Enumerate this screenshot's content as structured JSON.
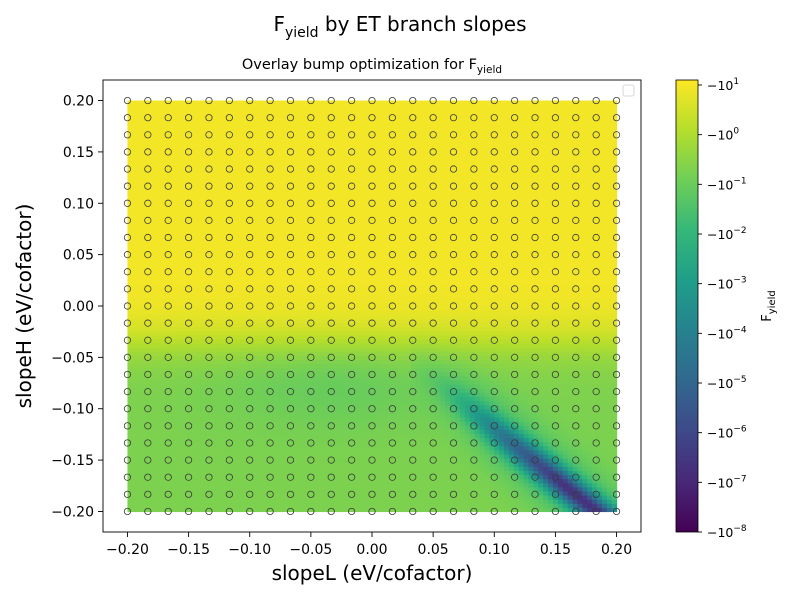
{
  "chart_data": {
    "type": "heatmap",
    "suptitle": {
      "base": "F",
      "sub": "yield",
      "rest": " by ET branch slopes"
    },
    "title": {
      "base": "Overlay bump optimization for F",
      "sub": "yield"
    },
    "xlabel": "slopeL (eV/cofactor)",
    "ylabel": "slopeH (eV/cofactor)",
    "xlim": [
      -0.22,
      0.22
    ],
    "ylim": [
      -0.22,
      0.22
    ],
    "data_range": {
      "x": [
        -0.2,
        0.2
      ],
      "y": [
        -0.2,
        0.2
      ]
    },
    "xticks": [
      "−0.20",
      "−0.15",
      "−0.10",
      "−0.05",
      "0.00",
      "0.05",
      "0.10",
      "0.15",
      "0.20"
    ],
    "yticks": [
      "−0.20",
      "−0.15",
      "−0.10",
      "−0.05",
      "0.00",
      "0.05",
      "0.10",
      "0.15",
      "0.20"
    ],
    "xtick_values": [
      -0.2,
      -0.15,
      -0.1,
      -0.05,
      0,
      0.05,
      0.1,
      0.15,
      0.2
    ],
    "ytick_values": [
      -0.2,
      -0.15,
      -0.1,
      -0.05,
      0,
      0.05,
      0.1,
      0.15,
      0.2
    ],
    "markers": {
      "shape": "open-circle",
      "grid_x": 25,
      "grid_y": 25,
      "range": [
        -0.2,
        0.2
      ]
    },
    "legend": {
      "placement": "top-right",
      "entries": []
    },
    "colorbar": {
      "label": {
        "base": "F",
        "sub": "yield"
      },
      "scale": "symlog-negative",
      "colormap": "viridis",
      "ticks": [
        {
          "base": "−10",
          "exp": "1"
        },
        {
          "base": "−10",
          "exp": "0"
        },
        {
          "base": "−10",
          "exp": "−1"
        },
        {
          "base": "−10",
          "exp": "−2"
        },
        {
          "base": "−10",
          "exp": "−3"
        },
        {
          "base": "−10",
          "exp": "−4"
        },
        {
          "base": "−10",
          "exp": "−5"
        },
        {
          "base": "−10",
          "exp": "−6"
        },
        {
          "base": "−10",
          "exp": "−7"
        },
        {
          "base": "−10",
          "exp": "−8"
        }
      ],
      "colors": [
        "#440154",
        "#482878",
        "#3e4989",
        "#31688e",
        "#26828e",
        "#1f9e89",
        "#35b779",
        "#6ece58",
        "#b5de2b",
        "#fde725"
      ]
    },
    "regions": {
      "upper_plateau": "≈ −10^1 (yellow) for slopeH > −0.03",
      "lower_plateau": "≈ −10^0 (yellow-green)",
      "valley": "F_yield approaches 0 along slopeH ≈ −0.95·slopeL − 0.025 for slopeL > 0.04"
    }
  }
}
